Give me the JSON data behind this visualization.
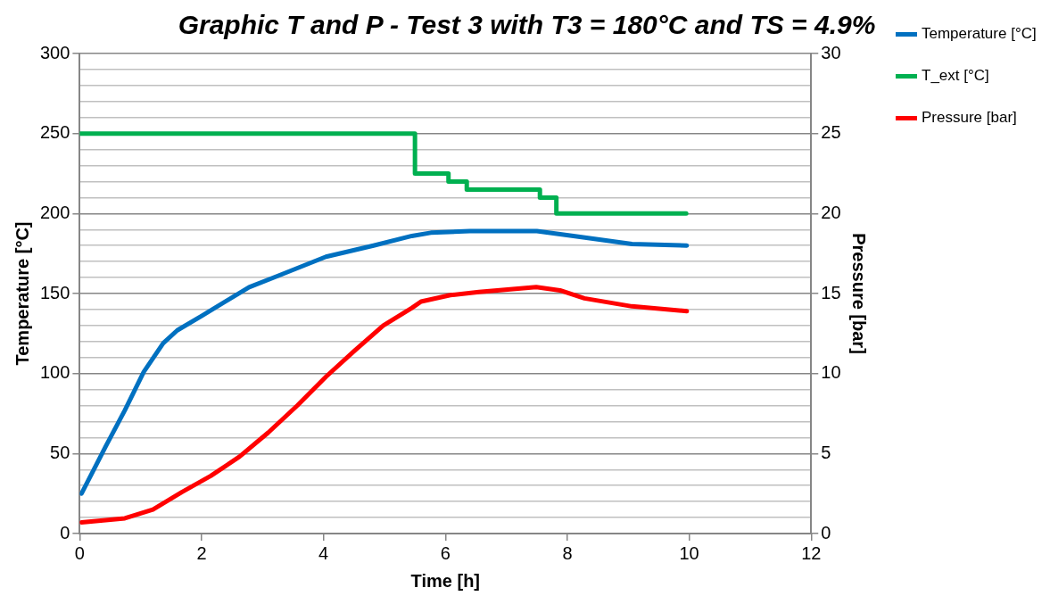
{
  "chart_data": {
    "type": "line",
    "title": "Graphic T and P - Test 3 with T3 = 180°C and TS = 4.9%",
    "xlabel": "Time [h]",
    "ylabel": "Temperature [°C]",
    "y2label": "Pressure [bar]",
    "xlim": [
      0,
      12
    ],
    "xticks": [
      0,
      2,
      4,
      6,
      8,
      10,
      12
    ],
    "ylim": [
      0,
      300
    ],
    "yticks": [
      0,
      {
        "value": 10,
        "label": null
      },
      {
        "value": 20,
        "label": null
      },
      {
        "value": 30,
        "label": null
      },
      {
        "value": 40,
        "label": null
      },
      50,
      {
        "value": 60,
        "label": null
      },
      {
        "value": 70,
        "label": null
      },
      {
        "value": 80,
        "label": null
      },
      {
        "value": 90,
        "label": null
      },
      100,
      {
        "value": 110,
        "label": null
      },
      {
        "value": 120,
        "label": null
      },
      {
        "value": 130,
        "label": null
      },
      {
        "value": 140,
        "label": null
      },
      150,
      {
        "value": 160,
        "label": null
      },
      {
        "value": 170,
        "label": null
      },
      {
        "value": 180,
        "label": null
      },
      {
        "value": 190,
        "label": null
      },
      200,
      {
        "value": 210,
        "label": null
      },
      {
        "value": 220,
        "label": null
      },
      {
        "value": 230,
        "label": null
      },
      {
        "value": 240,
        "label": null
      },
      250,
      {
        "value": 260,
        "label": null
      },
      {
        "value": 270,
        "label": null
      },
      {
        "value": 280,
        "label": null
      },
      {
        "value": 290,
        "label": null
      },
      300
    ],
    "y2lim": [
      0,
      30
    ],
    "y2ticks": [
      0,
      5,
      10,
      15,
      20,
      25,
      30
    ],
    "grid": "y",
    "legend": "right",
    "marker": "none",
    "series": [
      {
        "name": "Temperature [°C]",
        "color": "#0070c0",
        "x": [
          0.03,
          0.42,
          0.74,
          1.05,
          1.37,
          1.6,
          2.0,
          2.78,
          3.25,
          4.04,
          4.82,
          5.45,
          5.76,
          6.4,
          7.5,
          8.1,
          9.06,
          9.96
        ],
        "values": [
          25,
          54,
          77,
          101,
          119,
          127,
          136,
          154,
          161,
          173,
          180,
          186,
          188,
          189,
          189,
          186,
          181,
          180
        ]
      },
      {
        "name": "T_ext [°C]",
        "type": "step",
        "color": "#00b050",
        "x": [
          0,
          5.5,
          6.05,
          6.35,
          7.55,
          7.82,
          9.95
        ],
        "values": [
          250,
          225,
          220,
          215,
          210,
          200,
          200
        ]
      },
      {
        "name": "Pressure [bar]",
        "axis": "y2",
        "color": "#ff0000",
        "x": [
          0.03,
          0.74,
          1.2,
          1.68,
          2.15,
          2.62,
          3.09,
          3.57,
          4.04,
          4.5,
          4.98,
          5.45,
          5.6,
          6.08,
          6.55,
          7.49,
          7.88,
          8.28,
          9.06,
          9.96
        ],
        "values": [
          0.7,
          0.95,
          1.5,
          2.6,
          3.6,
          4.8,
          6.3,
          8.0,
          9.8,
          11.4,
          13.0,
          14.1,
          14.5,
          14.9,
          15.1,
          15.4,
          15.2,
          14.7,
          14.2,
          13.9
        ]
      }
    ]
  }
}
